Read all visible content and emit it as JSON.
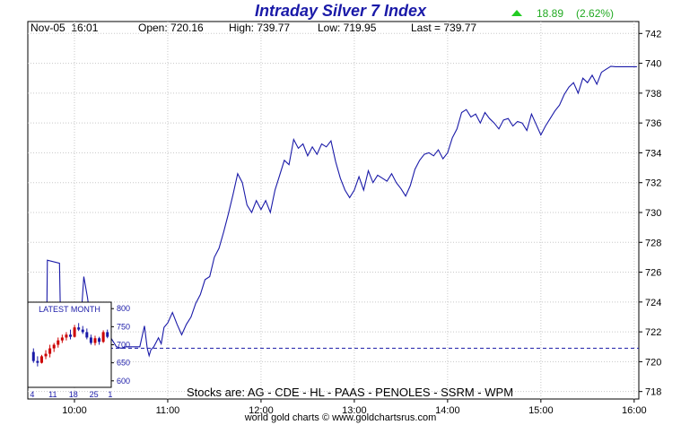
{
  "title": "Intraday Silver 7 Index",
  "change": {
    "value": "18.89",
    "percent": "(2.62%)",
    "direction": "up",
    "color": "#22aa22"
  },
  "info": {
    "datetime": "Nov-05  16:01",
    "open": "Open: 720.16",
    "high": "High: 739.77",
    "low": "Low: 719.95",
    "last": "Last = 739.77"
  },
  "stocks_label": "Stocks are: AG - CDE - HL - PAAS - PENOLES - SSRM - WPM",
  "footer": "world gold charts © www.goldchartsrus.com",
  "chart_data": {
    "type": "line",
    "line_color": "#1a1aa8",
    "reference_line": {
      "value": 720.9,
      "style": "dashed",
      "color": "#1a1aa8"
    },
    "xlim": [
      9.5,
      16.05
    ],
    "ylim": [
      717.5,
      742.8
    ],
    "x_ticks": [
      "10:00",
      "11:00",
      "12:00",
      "13:00",
      "14:00",
      "15:00",
      "16:00"
    ],
    "x_tick_values": [
      10,
      11,
      12,
      13,
      14,
      15,
      16
    ],
    "y_ticks": [
      718,
      720,
      722,
      724,
      726,
      728,
      730,
      732,
      734,
      736,
      738,
      740,
      742
    ],
    "grid": true,
    "series": [
      {
        "x": [
          9.5,
          9.7,
          9.71,
          9.84,
          9.85,
          9.88,
          9.9,
          10.05,
          10.1,
          10.14,
          10.2,
          10.25,
          10.3,
          10.35,
          10.4,
          10.45,
          10.5,
          10.55,
          10.6,
          10.7,
          10.75,
          10.78,
          10.8,
          10.82,
          10.85,
          10.9,
          10.93,
          10.96,
          11.0,
          11.05,
          11.1,
          11.15,
          11.2,
          11.25,
          11.3,
          11.35,
          11.4,
          11.45,
          11.5,
          11.55,
          11.6,
          11.65,
          11.7,
          11.75,
          11.8,
          11.85,
          11.9,
          11.95,
          12.0,
          12.05,
          12.1,
          12.15,
          12.2,
          12.25,
          12.3,
          12.35,
          12.4,
          12.45,
          12.5,
          12.55,
          12.6,
          12.65,
          12.7,
          12.75,
          12.8,
          12.85,
          12.9,
          12.95,
          13.0,
          13.05,
          13.1,
          13.15,
          13.2,
          13.25,
          13.3,
          13.35,
          13.4,
          13.45,
          13.5,
          13.55,
          13.6,
          13.65,
          13.7,
          13.75,
          13.8,
          13.85,
          13.9,
          13.95,
          14.0,
          14.05,
          14.1,
          14.15,
          14.2,
          14.25,
          14.3,
          14.35,
          14.4,
          14.45,
          14.5,
          14.55,
          14.6,
          14.65,
          14.7,
          14.75,
          14.8,
          14.85,
          14.9,
          14.95,
          15.0,
          15.05,
          15.1,
          15.15,
          15.2,
          15.25,
          15.3,
          15.35,
          15.4,
          15.45,
          15.5,
          15.55,
          15.6,
          15.65,
          15.7,
          15.75,
          15.8,
          15.85,
          15.9,
          15.95,
          16.0,
          16.03
        ],
        "values": [
          721.0,
          721.0,
          726.8,
          726.6,
          723.0,
          722.5,
          721.0,
          721.0,
          725.7,
          724.3,
          721.5,
          721.0,
          720.8,
          721.0,
          721.5,
          721.0,
          720.9,
          721.0,
          721.0,
          721.0,
          722.4,
          720.9,
          720.4,
          720.8,
          721.0,
          721.6,
          721.2,
          722.3,
          722.6,
          723.3,
          722.5,
          721.8,
          722.5,
          723.0,
          723.9,
          724.5,
          725.5,
          725.7,
          727.0,
          727.6,
          728.7,
          729.9,
          731.2,
          732.6,
          732.0,
          730.5,
          730.0,
          730.8,
          730.2,
          730.8,
          730.0,
          731.5,
          732.5,
          733.5,
          733.2,
          734.9,
          734.3,
          734.6,
          733.8,
          734.4,
          733.9,
          734.6,
          734.4,
          734.8,
          733.4,
          732.3,
          731.5,
          731.0,
          731.5,
          732.4,
          731.5,
          732.8,
          732.0,
          732.5,
          732.3,
          732.1,
          732.6,
          732.0,
          731.6,
          731.1,
          731.8,
          732.9,
          733.5,
          733.9,
          734.0,
          733.8,
          734.2,
          733.6,
          734.0,
          735.0,
          735.6,
          736.7,
          736.9,
          736.4,
          736.6,
          736.0,
          736.7,
          736.3,
          736.0,
          735.6,
          736.2,
          736.3,
          735.8,
          736.1,
          736.0,
          735.5,
          736.6,
          735.9,
          735.2,
          735.8,
          736.3,
          736.8,
          737.2,
          737.9,
          738.4,
          738.7,
          738.0,
          739.0,
          738.7,
          739.2,
          738.6,
          739.4,
          739.6,
          739.8,
          739.77,
          739.77,
          739.77,
          739.77,
          739.77,
          739.77
        ]
      }
    ]
  },
  "inset": {
    "title": "LATEST MONTH",
    "y_ticks": [
      "800",
      "750",
      "700",
      "650",
      "600"
    ],
    "y_tick_values": [
      800,
      750,
      700,
      650,
      600
    ],
    "ylim": [
      592,
      808
    ],
    "x_ticks": [
      "4",
      "11",
      "18",
      "25",
      "1"
    ],
    "up_color": "#cc0000",
    "down_color": "#1a1aa8",
    "candles": [
      {
        "o": 680,
        "h": 690,
        "l": 650,
        "c": 655
      },
      {
        "o": 655,
        "h": 668,
        "l": 640,
        "c": 650
      },
      {
        "o": 650,
        "h": 672,
        "l": 648,
        "c": 668
      },
      {
        "o": 668,
        "h": 685,
        "l": 660,
        "c": 675
      },
      {
        "o": 675,
        "h": 700,
        "l": 665,
        "c": 690
      },
      {
        "o": 690,
        "h": 705,
        "l": 680,
        "c": 700
      },
      {
        "o": 700,
        "h": 720,
        "l": 692,
        "c": 712
      },
      {
        "o": 712,
        "h": 728,
        "l": 705,
        "c": 720
      },
      {
        "o": 720,
        "h": 735,
        "l": 712,
        "c": 728
      },
      {
        "o": 728,
        "h": 742,
        "l": 715,
        "c": 722
      },
      {
        "o": 722,
        "h": 755,
        "l": 720,
        "c": 748
      },
      {
        "o": 748,
        "h": 760,
        "l": 738,
        "c": 742
      },
      {
        "o": 742,
        "h": 752,
        "l": 730,
        "c": 735
      },
      {
        "o": 735,
        "h": 745,
        "l": 715,
        "c": 720
      },
      {
        "o": 720,
        "h": 728,
        "l": 700,
        "c": 705
      },
      {
        "o": 705,
        "h": 725,
        "l": 698,
        "c": 718
      },
      {
        "o": 718,
        "h": 722,
        "l": 700,
        "c": 708
      },
      {
        "o": 708,
        "h": 740,
        "l": 705,
        "c": 735
      },
      {
        "o": 735,
        "h": 742,
        "l": 718,
        "c": 722
      }
    ]
  }
}
